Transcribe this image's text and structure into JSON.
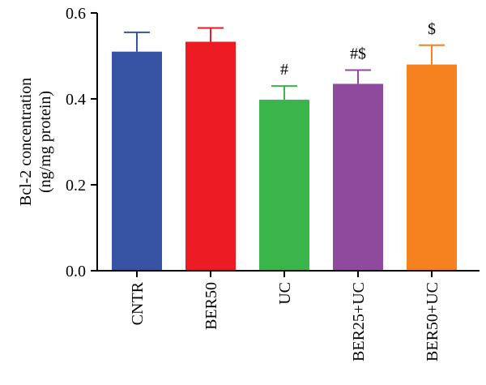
{
  "chart_data": {
    "type": "bar",
    "categories": [
      "CNTR",
      "BER50",
      "UC",
      "BER25+UC",
      "BER50+UC"
    ],
    "values": [
      0.51,
      0.533,
      0.398,
      0.435,
      0.48
    ],
    "errors": [
      0.045,
      0.032,
      0.032,
      0.032,
      0.045
    ],
    "colors": [
      "#3653a4",
      "#ed1c24",
      "#3ab54a",
      "#8e4b9e",
      "#f5821f"
    ],
    "annotations": [
      "",
      "",
      "#",
      "#$",
      "$"
    ],
    "ylabel_line1": "Bcl-2 concentration",
    "ylabel_line2": "(ng/mg protein)",
    "ylim": [
      0,
      0.6
    ],
    "yticks": [
      "0.0",
      "0.2",
      "0.4",
      "0.6"
    ],
    "ytick_values": [
      0,
      0.2,
      0.4,
      0.6
    ],
    "grid": false
  }
}
